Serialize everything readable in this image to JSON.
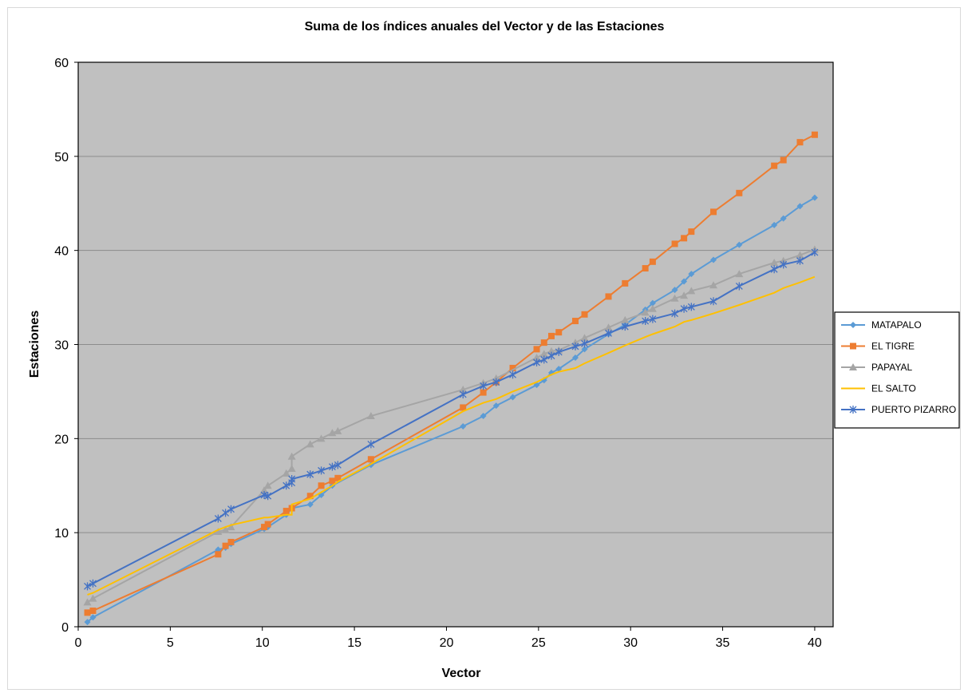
{
  "chart_data": {
    "type": "line",
    "title": "Suma de los índices anuales del Vector y de las Estaciones",
    "xlabel": "Vector",
    "ylabel": "Estaciones",
    "xlim": [
      0,
      41
    ],
    "ylim": [
      0,
      60
    ],
    "x_ticks": [
      0,
      5,
      10,
      15,
      20,
      25,
      30,
      35,
      40
    ],
    "y_ticks": [
      0,
      10,
      20,
      30,
      40,
      50,
      60
    ],
    "grid": "horizontal",
    "plot_background": "#c0c0c0",
    "legend_position": "right",
    "series": [
      {
        "name": "MATAPALO",
        "color": "#5b9bd5",
        "marker": "diamond",
        "points": [
          [
            0.5,
            0.5
          ],
          [
            0.8,
            1.0
          ],
          [
            7.6,
            8.2
          ],
          [
            8.0,
            8.4
          ],
          [
            8.3,
            8.8
          ],
          [
            10.1,
            10.4
          ],
          [
            10.3,
            10.6
          ],
          [
            11.3,
            11.9
          ],
          [
            11.6,
            12.6
          ],
          [
            12.6,
            13.0
          ],
          [
            13.2,
            14.0
          ],
          [
            13.8,
            15.0
          ],
          [
            15.9,
            17.2
          ],
          [
            20.9,
            21.3
          ],
          [
            22.0,
            22.4
          ],
          [
            22.7,
            23.5
          ],
          [
            23.6,
            24.4
          ],
          [
            24.9,
            25.7
          ],
          [
            25.3,
            26.2
          ],
          [
            25.7,
            27.0
          ],
          [
            26.1,
            27.4
          ],
          [
            27.0,
            28.6
          ],
          [
            27.5,
            29.5
          ],
          [
            28.8,
            31.1
          ],
          [
            29.7,
            32.1
          ],
          [
            30.8,
            33.7
          ],
          [
            31.2,
            34.4
          ],
          [
            32.4,
            35.8
          ],
          [
            32.9,
            36.7
          ],
          [
            33.3,
            37.5
          ],
          [
            34.5,
            39.0
          ],
          [
            35.9,
            40.6
          ],
          [
            37.8,
            42.7
          ],
          [
            38.3,
            43.4
          ],
          [
            39.2,
            44.7
          ],
          [
            40.0,
            45.6
          ]
        ]
      },
      {
        "name": "EL TIGRE",
        "color": "#ed7d31",
        "marker": "square",
        "points": [
          [
            0.5,
            1.5
          ],
          [
            0.8,
            1.7
          ],
          [
            7.6,
            7.7
          ],
          [
            8.0,
            8.6
          ],
          [
            8.3,
            9.0
          ],
          [
            10.1,
            10.6
          ],
          [
            10.3,
            10.9
          ],
          [
            11.3,
            12.3
          ],
          [
            11.6,
            12.6
          ],
          [
            12.6,
            13.9
          ],
          [
            13.2,
            15.0
          ],
          [
            13.8,
            15.5
          ],
          [
            14.1,
            15.8
          ],
          [
            15.9,
            17.8
          ],
          [
            20.9,
            23.3
          ],
          [
            22.0,
            24.9
          ],
          [
            22.7,
            26.0
          ],
          [
            23.6,
            27.5
          ],
          [
            24.9,
            29.5
          ],
          [
            25.3,
            30.2
          ],
          [
            25.7,
            30.9
          ],
          [
            26.1,
            31.3
          ],
          [
            27.0,
            32.5
          ],
          [
            27.5,
            33.2
          ],
          [
            28.8,
            35.1
          ],
          [
            29.7,
            36.5
          ],
          [
            30.8,
            38.1
          ],
          [
            31.2,
            38.8
          ],
          [
            32.4,
            40.7
          ],
          [
            32.9,
            41.3
          ],
          [
            33.3,
            42.0
          ],
          [
            34.5,
            44.1
          ],
          [
            35.9,
            46.1
          ],
          [
            37.8,
            49.0
          ],
          [
            38.3,
            49.6
          ],
          [
            39.2,
            51.5
          ],
          [
            40.0,
            52.3
          ]
        ]
      },
      {
        "name": "PAPAYAL",
        "color": "#a5a5a5",
        "marker": "triangle",
        "points": [
          [
            0.5,
            2.6
          ],
          [
            0.8,
            3.0
          ],
          [
            7.6,
            10.1
          ],
          [
            8.0,
            10.3
          ],
          [
            8.3,
            10.6
          ],
          [
            10.1,
            14.5
          ],
          [
            10.3,
            15.0
          ],
          [
            11.3,
            16.3
          ],
          [
            11.6,
            16.8
          ],
          [
            11.6,
            18.1
          ],
          [
            12.6,
            19.4
          ],
          [
            13.2,
            20.0
          ],
          [
            13.8,
            20.6
          ],
          [
            14.1,
            20.8
          ],
          [
            15.9,
            22.4
          ],
          [
            20.9,
            25.2
          ],
          [
            22.0,
            25.9
          ],
          [
            22.7,
            26.4
          ],
          [
            24.9,
            28.6
          ],
          [
            25.3,
            29.0
          ],
          [
            25.7,
            29.3
          ],
          [
            26.1,
            29.4
          ],
          [
            27.0,
            30.2
          ],
          [
            27.5,
            30.7
          ],
          [
            28.8,
            31.8
          ],
          [
            29.7,
            32.6
          ],
          [
            30.8,
            33.4
          ],
          [
            31.2,
            33.8
          ],
          [
            32.4,
            34.9
          ],
          [
            32.9,
            35.2
          ],
          [
            33.3,
            35.7
          ],
          [
            34.5,
            36.3
          ],
          [
            35.9,
            37.5
          ],
          [
            37.8,
            38.7
          ],
          [
            38.3,
            38.9
          ],
          [
            39.2,
            39.5
          ],
          [
            40.0,
            40.1
          ]
        ]
      },
      {
        "name": "EL SALTO",
        "color": "#ffc000",
        "marker": "none",
        "points": [
          [
            0.5,
            3.4
          ],
          [
            0.8,
            3.6
          ],
          [
            7.6,
            10.3
          ],
          [
            8.0,
            10.6
          ],
          [
            8.3,
            10.8
          ],
          [
            10.1,
            11.6
          ],
          [
            10.3,
            11.6
          ],
          [
            11.3,
            11.9
          ],
          [
            11.6,
            11.9
          ],
          [
            11.6,
            13.0
          ],
          [
            12.6,
            13.6
          ],
          [
            13.2,
            14.3
          ],
          [
            13.8,
            15.0
          ],
          [
            14.1,
            15.4
          ],
          [
            15.9,
            17.3
          ],
          [
            20.9,
            22.9
          ],
          [
            22.0,
            23.8
          ],
          [
            22.7,
            24.2
          ],
          [
            23.6,
            25.0
          ],
          [
            24.9,
            26.0
          ],
          [
            25.3,
            26.4
          ],
          [
            25.7,
            26.8
          ],
          [
            26.1,
            27.1
          ],
          [
            27.0,
            27.5
          ],
          [
            27.5,
            28.0
          ],
          [
            28.8,
            29.1
          ],
          [
            29.7,
            29.9
          ],
          [
            30.8,
            30.8
          ],
          [
            31.2,
            31.1
          ],
          [
            32.4,
            31.9
          ],
          [
            32.9,
            32.4
          ],
          [
            33.3,
            32.6
          ],
          [
            34.5,
            33.3
          ],
          [
            35.9,
            34.2
          ],
          [
            37.8,
            35.5
          ],
          [
            38.3,
            36.0
          ],
          [
            39.2,
            36.6
          ],
          [
            40.0,
            37.2
          ]
        ]
      },
      {
        "name": "PUERTO PIZARRO",
        "color": "#4472c4",
        "marker": "star",
        "points": [
          [
            0.5,
            4.3
          ],
          [
            0.8,
            4.6
          ],
          [
            7.6,
            11.5
          ],
          [
            8.0,
            12.1
          ],
          [
            8.3,
            12.5
          ],
          [
            10.1,
            14.0
          ],
          [
            10.3,
            13.9
          ],
          [
            11.3,
            15.0
          ],
          [
            11.6,
            15.3
          ],
          [
            11.6,
            15.7
          ],
          [
            12.6,
            16.2
          ],
          [
            13.2,
            16.6
          ],
          [
            13.8,
            17.0
          ],
          [
            14.1,
            17.2
          ],
          [
            15.9,
            19.4
          ],
          [
            20.9,
            24.7
          ],
          [
            22.0,
            25.6
          ],
          [
            22.7,
            26.0
          ],
          [
            23.6,
            26.8
          ],
          [
            24.9,
            28.1
          ],
          [
            25.3,
            28.4
          ],
          [
            25.7,
            28.8
          ],
          [
            26.1,
            29.2
          ],
          [
            27.0,
            29.8
          ],
          [
            27.5,
            30.1
          ],
          [
            28.8,
            31.2
          ],
          [
            29.7,
            31.9
          ],
          [
            30.8,
            32.5
          ],
          [
            31.2,
            32.7
          ],
          [
            32.4,
            33.3
          ],
          [
            32.9,
            33.8
          ],
          [
            33.3,
            34.0
          ],
          [
            34.5,
            34.6
          ],
          [
            35.9,
            36.2
          ],
          [
            37.8,
            38.0
          ],
          [
            38.3,
            38.5
          ],
          [
            39.2,
            38.9
          ],
          [
            40.0,
            39.8
          ]
        ]
      }
    ]
  }
}
